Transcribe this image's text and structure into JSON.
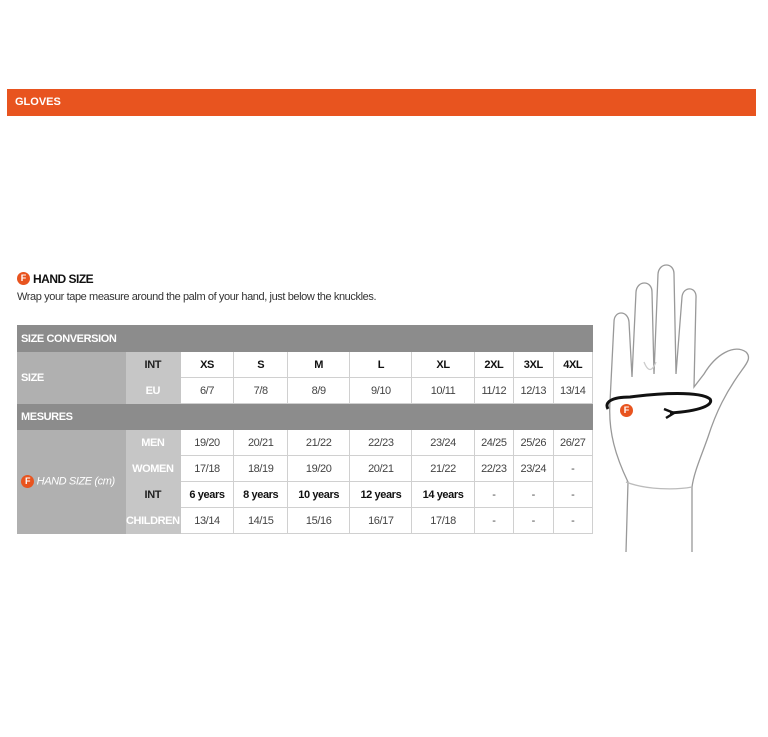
{
  "header": {
    "title": "GLOVES"
  },
  "section": {
    "badge": "F",
    "title": "HAND SIZE",
    "description": "Wrap your tape measure around the palm of your hand, just below the knuckles."
  },
  "table": {
    "size_conversion": "SIZE CONVERSION",
    "size_label": "SIZE",
    "int_label": "INT",
    "eu_label": "EU",
    "int": [
      "XS",
      "S",
      "M",
      "L",
      "XL",
      "2XL",
      "3XL",
      "4XL"
    ],
    "eu": [
      "6/7",
      "7/8",
      "8/9",
      "9/10",
      "10/11",
      "11/12",
      "12/13",
      "13/14"
    ],
    "mesures": "MESURES",
    "hand_badge": "F",
    "hand_label": "HAND SIZE (cm)",
    "men_label": "MEN",
    "men": [
      "19/20",
      "20/21",
      "21/22",
      "22/23",
      "23/24",
      "24/25",
      "25/26",
      "26/27"
    ],
    "women_label": "WOMEN",
    "women": [
      "17/18",
      "18/19",
      "19/20",
      "20/21",
      "21/22",
      "22/23",
      "23/24",
      "-"
    ],
    "kids_int_label": "INT",
    "kids_int": [
      "6 years",
      "8 years",
      "10 years",
      "12 years",
      "14 years",
      "-",
      "-",
      "-"
    ],
    "children_label": "CHILDREN",
    "children": [
      "13/14",
      "14/15",
      "15/16",
      "16/17",
      "17/18",
      "-",
      "-",
      "-"
    ]
  },
  "illustration": {
    "badge": "F"
  },
  "colors": {
    "accent": "#e8541f",
    "header_grey": "#8c8c8c"
  }
}
